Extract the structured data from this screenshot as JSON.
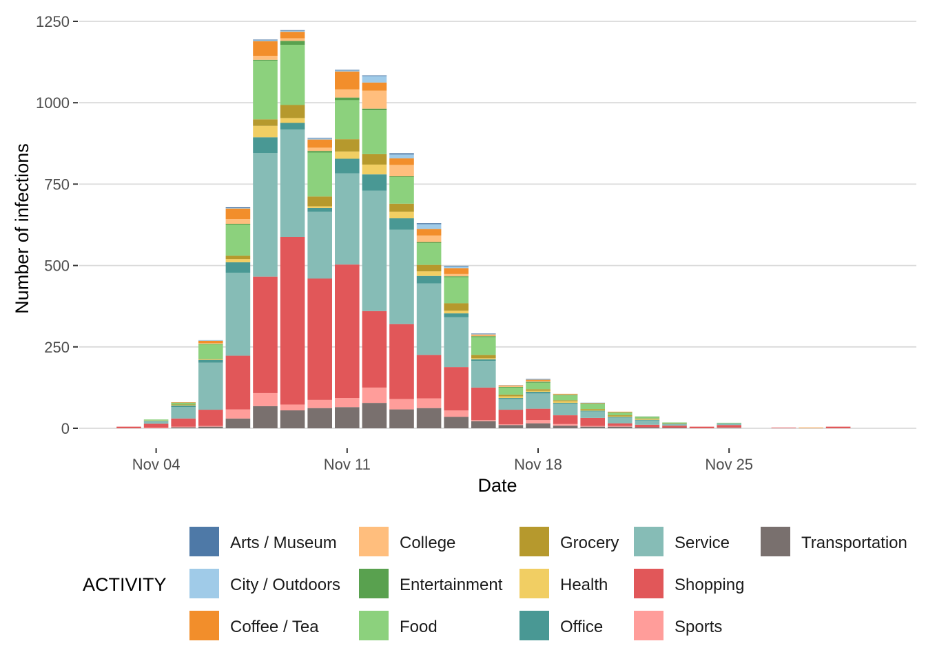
{
  "chart_data": {
    "type": "bar",
    "stacked": true,
    "xlabel": "Date",
    "ylabel": "Number of infections",
    "ylim": [
      0,
      1250
    ],
    "yticks": [
      0,
      250,
      500,
      750,
      1000,
      1250
    ],
    "xticks": [
      {
        "date": "Nov 04",
        "label": "Nov 04"
      },
      {
        "date": "Nov 11",
        "label": "Nov 11"
      },
      {
        "date": "Nov 18",
        "label": "Nov 18"
      },
      {
        "date": "Nov 25",
        "label": "Nov 25"
      }
    ],
    "grid": true,
    "legend_position": "bottom",
    "legend_title": "ACTIVITY",
    "categories": [
      "Nov 03",
      "Nov 04",
      "Nov 05",
      "Nov 06",
      "Nov 07",
      "Nov 08",
      "Nov 09",
      "Nov 10",
      "Nov 11",
      "Nov 12",
      "Nov 13",
      "Nov 14",
      "Nov 15",
      "Nov 16",
      "Nov 17",
      "Nov 18",
      "Nov 19",
      "Nov 20",
      "Nov 21",
      "Nov 22",
      "Nov 23",
      "Nov 24",
      "Nov 25",
      "Nov 26",
      "Nov 27",
      "Nov 28",
      "Nov 29",
      "Nov 30"
    ],
    "series": [
      {
        "name": "Transportation",
        "color": "#79706E",
        "values": [
          0,
          0,
          3,
          5,
          30,
          68,
          55,
          62,
          65,
          78,
          58,
          62,
          35,
          22,
          10,
          15,
          8,
          5,
          5,
          3,
          2,
          0,
          2,
          0,
          0,
          0,
          0,
          0
        ]
      },
      {
        "name": "Sports",
        "color": "#FF9D9A",
        "values": [
          0,
          2,
          2,
          2,
          28,
          40,
          18,
          25,
          28,
          47,
          32,
          30,
          20,
          3,
          2,
          10,
          5,
          2,
          2,
          0,
          0,
          0,
          1,
          0,
          0,
          0,
          0,
          0
        ]
      },
      {
        "name": "Shopping",
        "color": "#E15759",
        "values": [
          5,
          12,
          25,
          50,
          165,
          358,
          515,
          373,
          410,
          235,
          230,
          133,
          133,
          100,
          45,
          35,
          27,
          25,
          8,
          8,
          6,
          5,
          7,
          0,
          2,
          0,
          5,
          0
        ]
      },
      {
        "name": "Service",
        "color": "#86BCB6",
        "values": [
          0,
          8,
          35,
          145,
          255,
          380,
          330,
          205,
          280,
          370,
          290,
          220,
          153,
          82,
          33,
          47,
          35,
          20,
          18,
          13,
          6,
          0,
          5,
          0,
          0,
          0,
          0,
          0
        ]
      },
      {
        "name": "Office",
        "color": "#499894",
        "values": [
          0,
          1,
          5,
          8,
          32,
          48,
          20,
          12,
          45,
          50,
          35,
          23,
          12,
          5,
          3,
          5,
          3,
          2,
          2,
          2,
          0,
          0,
          0,
          0,
          0,
          0,
          0,
          0
        ]
      },
      {
        "name": "Health",
        "color": "#F1CE63",
        "values": [
          0,
          1,
          2,
          2,
          10,
          35,
          15,
          5,
          22,
          30,
          20,
          14,
          8,
          3,
          5,
          3,
          5,
          2,
          2,
          2,
          0,
          0,
          0,
          0,
          0,
          0,
          0,
          0
        ]
      },
      {
        "name": "Grocery",
        "color": "#B6992D",
        "values": [
          0,
          0,
          1,
          1,
          10,
          20,
          40,
          30,
          38,
          32,
          25,
          20,
          23,
          10,
          5,
          5,
          3,
          3,
          3,
          2,
          1,
          0,
          0,
          0,
          0,
          0,
          0,
          0
        ]
      },
      {
        "name": "Food",
        "color": "#8CD17D",
        "values": [
          0,
          3,
          5,
          45,
          95,
          180,
          185,
          135,
          120,
          135,
          82,
          67,
          80,
          55,
          22,
          20,
          15,
          15,
          8,
          5,
          3,
          0,
          2,
          0,
          0,
          0,
          0,
          0
        ]
      },
      {
        "name": "Entertainment",
        "color": "#59A14F",
        "values": [
          0,
          0,
          1,
          1,
          3,
          3,
          12,
          5,
          8,
          5,
          2,
          3,
          3,
          3,
          2,
          3,
          2,
          2,
          1,
          1,
          0,
          0,
          0,
          0,
          0,
          0,
          0,
          0
        ]
      },
      {
        "name": "College",
        "color": "#FFBE7D",
        "values": [
          0,
          0,
          0,
          3,
          15,
          12,
          8,
          10,
          25,
          55,
          35,
          20,
          7,
          2,
          3,
          3,
          2,
          1,
          1,
          0,
          0,
          0,
          0,
          0,
          0,
          0,
          0,
          0
        ]
      },
      {
        "name": "Coffee / Tea",
        "color": "#F28E2B",
        "values": [
          0,
          0,
          1,
          7,
          32,
          45,
          20,
          25,
          55,
          25,
          20,
          20,
          18,
          3,
          2,
          3,
          1,
          1,
          1,
          0,
          0,
          0,
          0,
          0,
          0,
          2,
          0,
          0
        ]
      },
      {
        "name": "City / Outdoors",
        "color": "#A0CBE8",
        "values": [
          0,
          0,
          0,
          2,
          2,
          3,
          3,
          3,
          3,
          20,
          12,
          15,
          5,
          2,
          1,
          2,
          0,
          1,
          0,
          0,
          0,
          0,
          0,
          0,
          0,
          0,
          0,
          0
        ]
      },
      {
        "name": "Arts / Museum",
        "color": "#4E79A7",
        "values": [
          0,
          0,
          0,
          0,
          2,
          2,
          2,
          2,
          2,
          2,
          4,
          3,
          2,
          1,
          0,
          1,
          0,
          0,
          0,
          0,
          0,
          0,
          0,
          0,
          0,
          0,
          0,
          0
        ]
      }
    ],
    "legend_order": [
      "Arts / Museum",
      "City / Outdoors",
      "Coffee / Tea",
      "College",
      "Entertainment",
      "Food",
      "Grocery",
      "Health",
      "Office",
      "Service",
      "Shopping",
      "Sports",
      "Transportation"
    ]
  }
}
